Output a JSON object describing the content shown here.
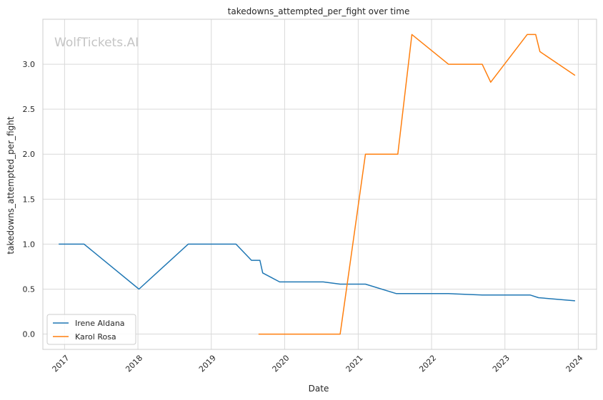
{
  "watermark": "WolfTickets.AI",
  "chart_data": {
    "type": "line",
    "title": "takedowns_attempted_per_fight over time",
    "xlabel": "Date",
    "ylabel": "takedowns_attempted_per_fight",
    "x_ticks": [
      "2017",
      "2018",
      "2019",
      "2020",
      "2021",
      "2022",
      "2023",
      "2024"
    ],
    "y_ticks": [
      "0.0",
      "0.5",
      "1.0",
      "1.5",
      "2.0",
      "2.5",
      "3.0"
    ],
    "xlim": [
      "2016-09-15",
      "2024-04-01"
    ],
    "ylim": [
      -0.17,
      3.5
    ],
    "grid": true,
    "legend_position": "lower-left",
    "series": [
      {
        "name": "Irene Aldana",
        "color": "#1f77b4",
        "points": [
          {
            "x": "2016-12-03",
            "y": 1.0
          },
          {
            "x": "2017-04-08",
            "y": 1.0
          },
          {
            "x": "2018-01-06",
            "y": 0.5
          },
          {
            "x": "2018-09-08",
            "y": 1.0
          },
          {
            "x": "2019-05-04",
            "y": 1.0
          },
          {
            "x": "2019-07-20",
            "y": 0.82
          },
          {
            "x": "2019-08-31",
            "y": 0.82
          },
          {
            "x": "2019-09-14",
            "y": 0.68
          },
          {
            "x": "2019-12-07",
            "y": 0.58
          },
          {
            "x": "2020-07-11",
            "y": 0.58
          },
          {
            "x": "2020-10-03",
            "y": 0.555
          },
          {
            "x": "2021-02-06",
            "y": 0.555
          },
          {
            "x": "2021-07-10",
            "y": 0.45
          },
          {
            "x": "2022-03-26",
            "y": 0.45
          },
          {
            "x": "2022-09-10",
            "y": 0.435
          },
          {
            "x": "2023-05-06",
            "y": 0.435
          },
          {
            "x": "2023-06-17",
            "y": 0.405
          },
          {
            "x": "2023-12-16",
            "y": 0.37
          }
        ]
      },
      {
        "name": "Karol Rosa",
        "color": "#ff7f0e",
        "points": [
          {
            "x": "2019-08-24",
            "y": 0.0
          },
          {
            "x": "2020-10-03",
            "y": 0.0
          },
          {
            "x": "2021-02-06",
            "y": 2.0
          },
          {
            "x": "2021-07-17",
            "y": 2.0
          },
          {
            "x": "2021-09-25",
            "y": 3.33
          },
          {
            "x": "2022-03-26",
            "y": 3.0
          },
          {
            "x": "2022-09-10",
            "y": 3.0
          },
          {
            "x": "2022-10-22",
            "y": 2.8
          },
          {
            "x": "2023-04-22",
            "y": 3.33
          },
          {
            "x": "2023-06-03",
            "y": 3.33
          },
          {
            "x": "2023-06-24",
            "y": 3.14
          },
          {
            "x": "2023-12-16",
            "y": 2.875
          }
        ]
      }
    ]
  }
}
